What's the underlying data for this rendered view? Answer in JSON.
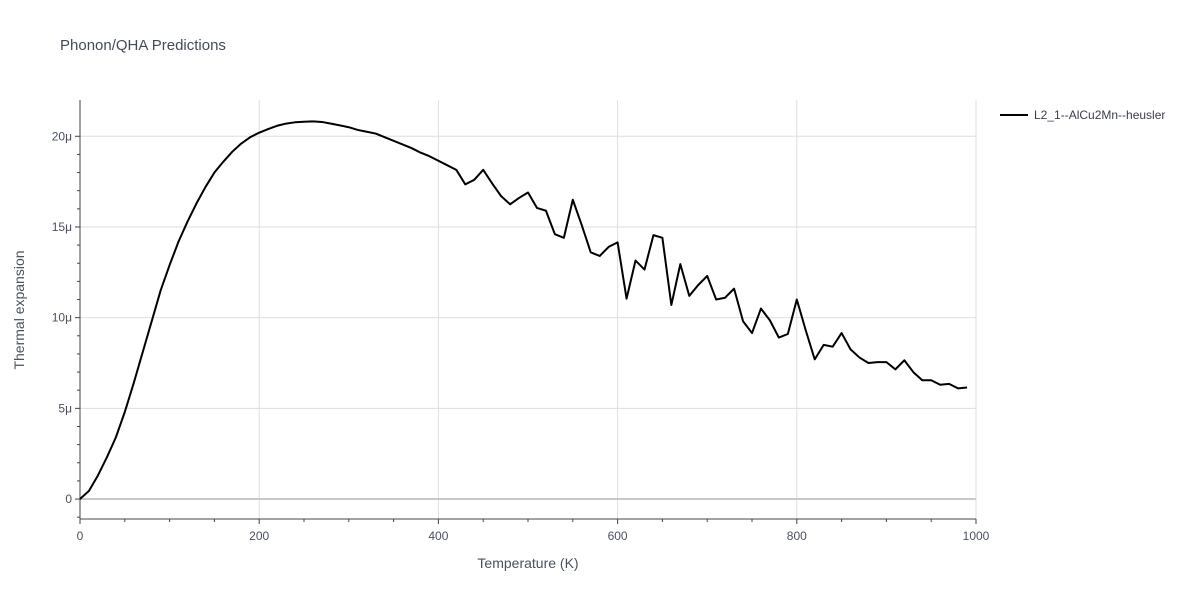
{
  "chart_data": {
    "type": "line",
    "title": "Phonon/QHA Predictions",
    "xlabel": "Temperature (K)",
    "ylabel": "Thermal expansion",
    "xlim": [
      0,
      1000
    ],
    "ylim": [
      -1.1e-06,
      2.2e-05
    ],
    "x_ticks": [
      0,
      200,
      400,
      600,
      800,
      1000
    ],
    "x_tick_labels": [
      "0",
      "200",
      "400",
      "600",
      "800",
      "1000"
    ],
    "y_ticks": [
      0,
      5e-06,
      1e-05,
      1.5e-05,
      2e-05
    ],
    "y_tick_labels": [
      "0",
      "5μ",
      "10μ",
      "15μ",
      "20μ"
    ],
    "grid": true,
    "legend_position": "top-right",
    "series": [
      {
        "name": "L2_1--AlCu2Mn--heusler",
        "color": "#000000",
        "x": [
          0,
          10,
          20,
          30,
          40,
          50,
          60,
          70,
          80,
          90,
          100,
          110,
          120,
          130,
          140,
          150,
          160,
          170,
          180,
          190,
          200,
          210,
          220,
          230,
          240,
          250,
          260,
          270,
          280,
          290,
          300,
          310,
          320,
          330,
          340,
          350,
          360,
          370,
          380,
          390,
          400,
          410,
          420,
          430,
          440,
          450,
          460,
          470,
          480,
          490,
          500,
          510,
          520,
          530,
          540,
          550,
          560,
          570,
          580,
          590,
          600,
          610,
          620,
          630,
          640,
          650,
          660,
          670,
          680,
          690,
          700,
          710,
          720,
          730,
          740,
          750,
          760,
          770,
          780,
          790,
          800,
          810,
          820,
          830,
          840,
          850,
          860,
          870,
          880,
          890,
          900,
          910,
          920,
          930,
          940,
          950,
          960,
          970,
          980,
          990
        ],
        "values": [
          0,
          4.5e-07,
          1.3e-06,
          2.3e-06,
          3.4e-06,
          4.8e-06,
          6.4e-06,
          8.1e-06,
          9.8e-06,
          1.15e-05,
          1.29e-05,
          1.42e-05,
          1.53e-05,
          1.63e-05,
          1.72e-05,
          1.8e-05,
          1.86e-05,
          1.915e-05,
          1.96e-05,
          1.995e-05,
          2.02e-05,
          2.04e-05,
          2.058e-05,
          2.07e-05,
          2.077e-05,
          2.08e-05,
          2.082e-05,
          2.079e-05,
          2.07e-05,
          2.06e-05,
          2.05e-05,
          2.035e-05,
          2.025e-05,
          2.015e-05,
          1.995e-05,
          1.975e-05,
          1.955e-05,
          1.935e-05,
          1.91e-05,
          1.89e-05,
          1.865e-05,
          1.84e-05,
          1.815e-05,
          1.735e-05,
          1.76e-05,
          1.815e-05,
          1.74e-05,
          1.67e-05,
          1.625e-05,
          1.66e-05,
          1.69e-05,
          1.605e-05,
          1.59e-05,
          1.46e-05,
          1.44e-05,
          1.65e-05,
          1.51e-05,
          1.36e-05,
          1.34e-05,
          1.39e-05,
          1.415e-05,
          1.105e-05,
          1.315e-05,
          1.265e-05,
          1.455e-05,
          1.44e-05,
          1.07e-05,
          1.295e-05,
          1.12e-05,
          1.18e-05,
          1.23e-05,
          1.1e-05,
          1.11e-05,
          1.16e-05,
          9.8e-06,
          9.15e-06,
          1.05e-05,
          9.85e-06,
          8.9e-06,
          9.1e-06,
          1.1e-05,
          9.3e-06,
          7.7e-06,
          8.5e-06,
          8.4e-06,
          9.15e-06,
          8.25e-06,
          7.8e-06,
          7.5e-06,
          7.55e-06,
          7.55e-06,
          7.15e-06,
          7.65e-06,
          7e-06,
          6.55e-06,
          6.55e-06,
          6.3e-06,
          6.35e-06,
          6.1e-06,
          6.15e-06
        ]
      }
    ]
  }
}
